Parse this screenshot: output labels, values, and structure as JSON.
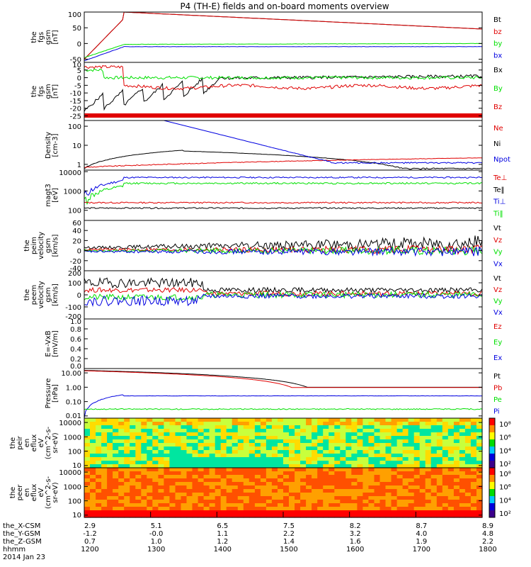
{
  "title": "P4 (TH-E) fields and on-board moments overview",
  "colors": {
    "black": "#000000",
    "red": "#e00000",
    "green": "#00e000",
    "blue": "#0000e0"
  },
  "chart_data": [
    {
      "type": "line",
      "ylabel": [
        "the",
        "fgs",
        "gsm",
        "[nT]"
      ],
      "ylim": [
        -60,
        100
      ],
      "yticks": [
        "100",
        "50",
        "0",
        "-50"
      ],
      "ytick_values": [
        100,
        50,
        0,
        -50
      ],
      "legend": [
        {
          "label": "Bt",
          "color": "black"
        },
        {
          "label": "bz",
          "color": "red"
        },
        {
          "label": "by",
          "color": "green"
        },
        {
          "label": "bx",
          "color": "blue"
        }
      ]
    },
    {
      "type": "line",
      "ylabel": [
        "the",
        "fgs",
        "gsm",
        "[nT]"
      ],
      "ylim": [
        -28,
        10
      ],
      "yticks": [
        "10",
        "5",
        "0",
        "-5",
        "-10",
        "-15",
        "-20",
        "-25"
      ],
      "ytick_values": [
        10,
        5,
        0,
        -5,
        -10,
        -15,
        -20,
        -25
      ],
      "legend": [
        {
          "label": "Bx",
          "color": "black"
        },
        {
          "label": "By",
          "color": "green"
        },
        {
          "label": "Bz",
          "color": "red"
        }
      ]
    },
    {
      "type": "line",
      "ylabel": [
        "Density",
        "[cm-3]"
      ],
      "ylim": [
        0.5,
        200
      ],
      "log": true,
      "yticks": [
        "100",
        "10",
        "1"
      ],
      "ytick_values": [
        100,
        10,
        1
      ],
      "legend": [
        {
          "label": "Ne",
          "color": "red"
        },
        {
          "label": "Ni",
          "color": "black"
        },
        {
          "label": "Npot",
          "color": "blue"
        }
      ]
    },
    {
      "type": "line",
      "ylabel": [
        "magt3",
        "[eV]"
      ],
      "ylim": [
        30,
        12000
      ],
      "log": true,
      "yticks": [
        "10000",
        "1000",
        "100"
      ],
      "ytick_values": [
        10000,
        1000,
        100
      ],
      "legend": [
        {
          "label": "Te⊥",
          "color": "red"
        },
        {
          "label": "Te‖",
          "color": "black"
        },
        {
          "label": "Ti⊥",
          "color": "blue"
        },
        {
          "label": "Ti‖",
          "color": "green"
        }
      ]
    },
    {
      "type": "line",
      "ylabel": [
        "the",
        "peim",
        "velocity",
        "gsm",
        "[km/s]"
      ],
      "ylim": [
        -40,
        60
      ],
      "yticks": [
        "60",
        "40",
        "20",
        "0",
        "-20",
        "-40"
      ],
      "ytick_values": [
        60,
        40,
        20,
        0,
        -20,
        -40
      ],
      "legend": [
        {
          "label": "Vt",
          "color": "black"
        },
        {
          "label": "Vz",
          "color": "red"
        },
        {
          "label": "Vy",
          "color": "green"
        },
        {
          "label": "Vx",
          "color": "blue"
        }
      ]
    },
    {
      "type": "line",
      "ylabel": [
        "the",
        "peem",
        "velocity",
        "gsm",
        "[km/s]"
      ],
      "ylim": [
        -200,
        200
      ],
      "yticks": [
        "200",
        "100",
        "0",
        "-100",
        "-200"
      ],
      "ytick_values": [
        200,
        100,
        0,
        -100,
        -200
      ],
      "legend": [
        {
          "label": "Vt",
          "color": "black"
        },
        {
          "label": "Vz",
          "color": "red"
        },
        {
          "label": "Vy",
          "color": "green"
        },
        {
          "label": "Vx",
          "color": "blue"
        }
      ]
    },
    {
      "type": "line",
      "ylabel": [
        "E=-VxB",
        "[mV/m]"
      ],
      "ylim": [
        0,
        1
      ],
      "yticks": [
        "1.0",
        "0.8",
        "0.6",
        "0.4",
        "0.2",
        "0.0"
      ],
      "ytick_values": [
        1.0,
        0.8,
        0.6,
        0.4,
        0.2,
        0.0
      ],
      "legend": [
        {
          "label": "Ez",
          "color": "red"
        },
        {
          "label": "Ey",
          "color": "green"
        },
        {
          "label": "Ex",
          "color": "blue"
        }
      ]
    },
    {
      "type": "line",
      "ylabel": [
        "Pressure",
        "[nPa]"
      ],
      "ylim": [
        0.007,
        20
      ],
      "log": true,
      "yticks": [
        "10.00",
        "1.00",
        "0.10",
        "0.01"
      ],
      "ytick_values": [
        10,
        1,
        0.1,
        0.01
      ],
      "legend": [
        {
          "label": "Pt",
          "color": "black"
        },
        {
          "label": "Pb",
          "color": "red"
        },
        {
          "label": "Pe",
          "color": "green"
        },
        {
          "label": "Pi",
          "color": "blue"
        }
      ]
    },
    {
      "type": "heatmap",
      "ylabel": [
        "the",
        "peir",
        "en",
        "eflux",
        "eV",
        "(cm^2-s-",
        "sr-eV)"
      ],
      "yticks": [
        "10000",
        "1000",
        "100",
        "10"
      ],
      "ytick_values": [
        10000,
        1000,
        100,
        10
      ],
      "ylim": [
        7,
        20000
      ],
      "log": true,
      "colorbar": [
        "10⁸",
        "10⁶",
        "10⁴",
        "10²"
      ]
    },
    {
      "type": "heatmap",
      "ylabel": [
        "the",
        "peer",
        "en",
        "eflux",
        "eV",
        "(cm^2-s-",
        "sr-eV)"
      ],
      "yticks": [
        "10000",
        "1000",
        "100",
        "10"
      ],
      "ytick_values": [
        10000,
        1000,
        100,
        10
      ],
      "ylim": [
        7,
        20000
      ],
      "log": true,
      "colorbar": [
        "10⁸",
        "10⁶",
        "10⁴",
        "10²"
      ]
    }
  ],
  "xaxis": {
    "rows": [
      {
        "label": "the_X-CSM",
        "values": [
          "2.9",
          "5.1",
          "6.5",
          "7.5",
          "8.2",
          "8.7",
          "8.9"
        ]
      },
      {
        "label": "the_Y-GSM",
        "values": [
          "-1.2",
          "-0.0",
          "1.1",
          "2.2",
          "3.2",
          "4.0",
          "4.8"
        ]
      },
      {
        "label": "the_Z-GSM",
        "values": [
          "0.7",
          "1.0",
          "1.2",
          "1.4",
          "1.6",
          "1.9",
          "2.2"
        ]
      },
      {
        "label": "hhmm",
        "values": [
          "1200",
          "1300",
          "1400",
          "1500",
          "1600",
          "1700",
          "1800"
        ]
      }
    ],
    "date": "2014 Jan 23"
  }
}
